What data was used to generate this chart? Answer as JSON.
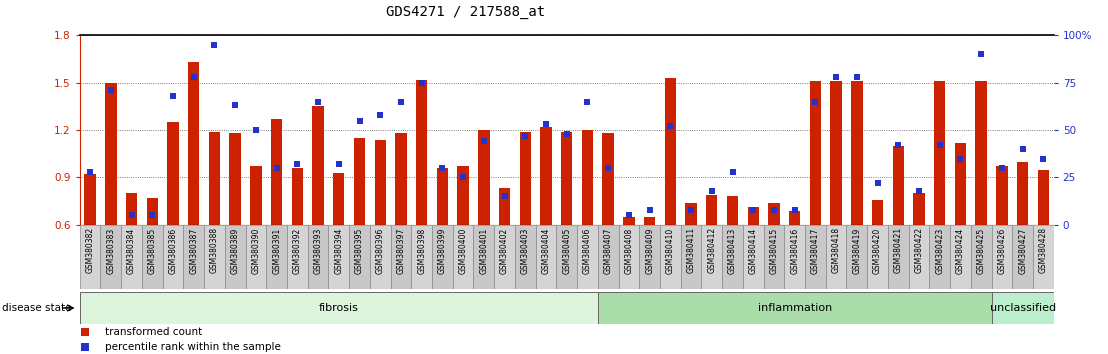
{
  "title": "GDS4271 / 217588_at",
  "samples": [
    "GSM380382",
    "GSM380383",
    "GSM380384",
    "GSM380385",
    "GSM380386",
    "GSM380387",
    "GSM380388",
    "GSM380389",
    "GSM380390",
    "GSM380391",
    "GSM380392",
    "GSM380393",
    "GSM380394",
    "GSM380395",
    "GSM380396",
    "GSM380397",
    "GSM380398",
    "GSM380399",
    "GSM380400",
    "GSM380401",
    "GSM380402",
    "GSM380403",
    "GSM380404",
    "GSM380405",
    "GSM380406",
    "GSM380407",
    "GSM380408",
    "GSM380409",
    "GSM380410",
    "GSM380411",
    "GSM380412",
    "GSM380413",
    "GSM380414",
    "GSM380415",
    "GSM380416",
    "GSM380417",
    "GSM380418",
    "GSM380419",
    "GSM380420",
    "GSM380421",
    "GSM380422",
    "GSM380423",
    "GSM380424",
    "GSM380425",
    "GSM380426",
    "GSM380427",
    "GSM380428"
  ],
  "bar_values": [
    0.92,
    1.5,
    0.8,
    0.77,
    1.25,
    1.63,
    1.19,
    1.18,
    0.97,
    1.27,
    0.96,
    1.35,
    0.93,
    1.15,
    1.14,
    1.18,
    1.52,
    0.96,
    0.97,
    1.2,
    0.83,
    1.19,
    1.22,
    1.19,
    1.2,
    1.18,
    0.65,
    0.65,
    1.53,
    0.74,
    0.79,
    0.78,
    0.71,
    0.74,
    0.69,
    1.51,
    1.51,
    1.51,
    0.76,
    1.1,
    0.8,
    1.51,
    1.12,
    1.51,
    0.97,
    1.0,
    0.95
  ],
  "percentile_values": [
    28,
    71,
    5,
    5,
    68,
    78,
    95,
    63,
    50,
    30,
    32,
    65,
    32,
    55,
    58,
    65,
    75,
    30,
    25,
    44,
    15,
    47,
    53,
    48,
    65,
    30,
    5,
    8,
    52,
    8,
    18,
    28,
    8,
    8,
    8,
    65,
    78,
    78,
    22,
    42,
    18,
    42,
    35,
    90,
    30,
    40,
    35
  ],
  "groups": [
    {
      "label": "fibrosis",
      "start": 0,
      "end": 24,
      "color": "#ddf5dd"
    },
    {
      "label": "inflammation",
      "start": 25,
      "end": 43,
      "color": "#aaddaa"
    },
    {
      "label": "unclassified",
      "start": 44,
      "end": 46,
      "color": "#bbeecc"
    }
  ],
  "ylim_left": [
    0.6,
    1.8
  ],
  "ylim_right": [
    0,
    100
  ],
  "yticks_left": [
    0.6,
    0.9,
    1.2,
    1.5,
    1.8
  ],
  "yticks_right": [
    0,
    25,
    50,
    75,
    100
  ],
  "ytick_labels_right": [
    "0",
    "25",
    "50",
    "75",
    "100%"
  ],
  "bar_color": "#cc2200",
  "dot_color": "#2233cc",
  "bg_color": "#ffffff",
  "tick_bg_even": "#d4d4d4",
  "tick_bg_odd": "#c8c8c8",
  "disease_state_label": "disease state"
}
